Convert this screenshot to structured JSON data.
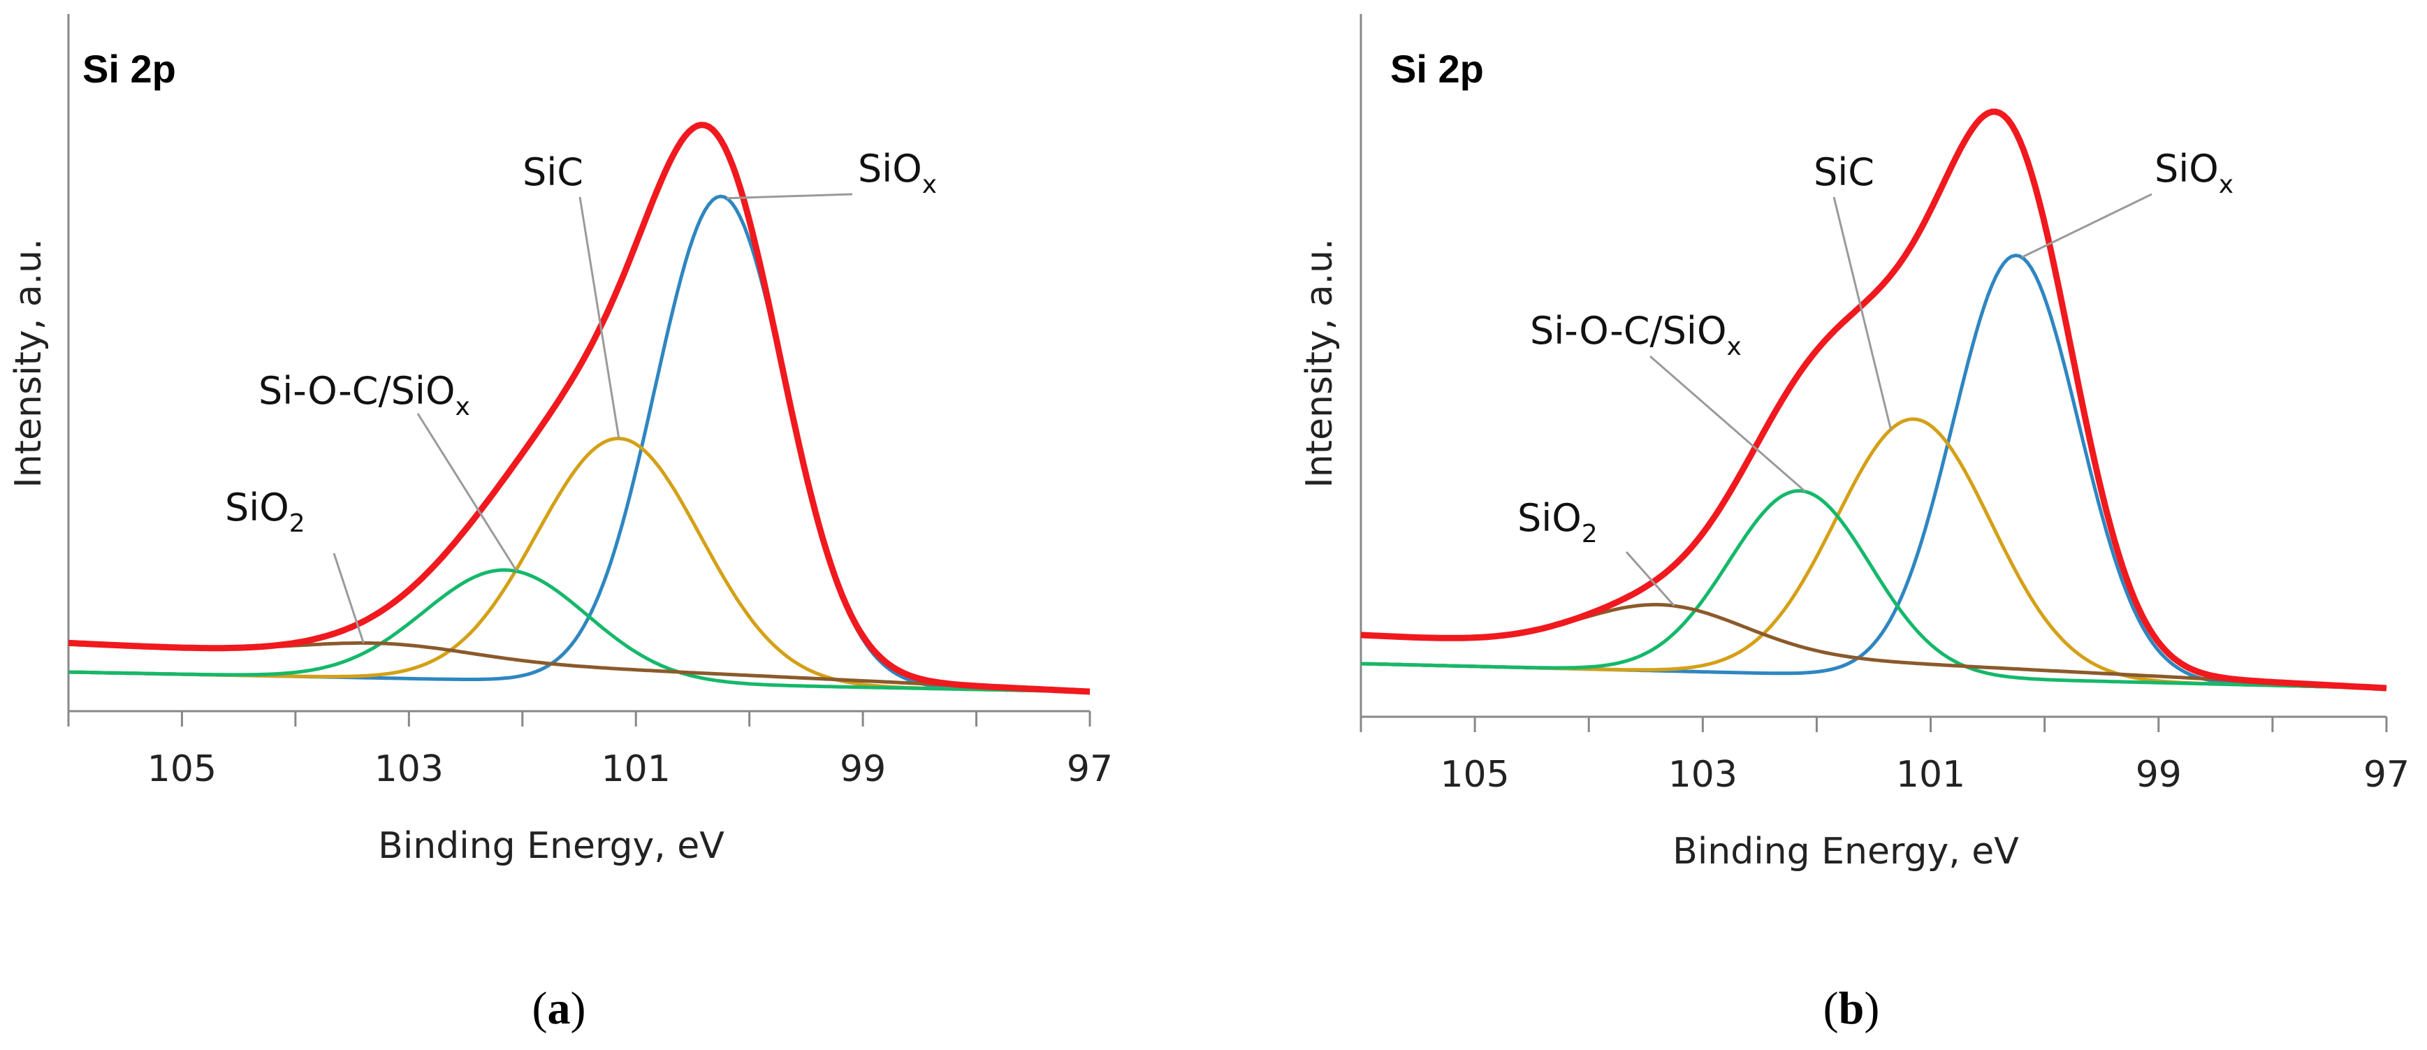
{
  "chart_data": [
    {
      "type": "line",
      "panel": "a",
      "caption": {
        "open": "(",
        "letter": "a",
        "close": ")"
      },
      "title": "Si 2p",
      "xlabel": "Binding Energy, eV",
      "ylabel": "Intensity, a.u.",
      "xlim": [
        106,
        97
      ],
      "ylim": [
        0,
        1
      ],
      "x_reversed": true,
      "xticks": [
        105,
        103,
        101,
        99,
        97
      ],
      "grid": false,
      "colors": {
        "envelope": "#f0191e",
        "SiOx": "#2e86c1",
        "SiC": "#d4a017",
        "SiOC": "#15b86a",
        "SiO2": "#8b5a2b",
        "leader": "#9a9a9a"
      },
      "series": [
        {
          "name": "Envelope",
          "key": "envelope",
          "values_desc": "measured envelope",
          "center": 100.5,
          "peak": 0.96
        },
        {
          "name": "SiOx",
          "key": "SiOx",
          "center": 100.25,
          "amplitude": 0.84,
          "sigma": 0.58
        },
        {
          "name": "SiC",
          "key": "SiC",
          "center": 101.15,
          "amplitude": 0.42,
          "sigma": 0.72
        },
        {
          "name": "Si-O-C/SiOx",
          "key": "SiOC",
          "center": 102.15,
          "amplitude": 0.19,
          "sigma": 0.72
        },
        {
          "name": "SiO2",
          "key": "SiO2",
          "center": 103.2,
          "amplitude": 0.025,
          "sigma": 0.75
        }
      ],
      "background": {
        "left_level": 0.05,
        "right_level": 0.0
      },
      "annotations": [
        {
          "key": "SiO2",
          "label": "SiO",
          "sub": "2",
          "target_x": 103.4
        },
        {
          "key": "SiOC",
          "label": "Si-O-C/SiO",
          "sub": "x",
          "target_x": 102.05
        },
        {
          "key": "SiC",
          "label": "SiC",
          "sub": "",
          "target_x": 101.15
        },
        {
          "key": "SiOx",
          "label": "SiO",
          "sub": "x",
          "target_x": 100.2
        }
      ]
    },
    {
      "type": "line",
      "panel": "b",
      "caption": {
        "open": "(",
        "letter": "b",
        "close": ")"
      },
      "title": "Si 2p",
      "xlabel": "Binding Energy, eV",
      "ylabel": "Intensity, a.u.",
      "xlim": [
        106,
        97
      ],
      "ylim": [
        0,
        1
      ],
      "x_reversed": true,
      "xticks": [
        105,
        103,
        101,
        99,
        97
      ],
      "grid": false,
      "colors": {
        "envelope": "#f0191e",
        "SiOx": "#2e86c1",
        "SiC": "#d4a017",
        "SiOC": "#15b86a",
        "SiO2": "#8b5a2b",
        "leader": "#9a9a9a"
      },
      "series": [
        {
          "name": "Envelope",
          "key": "envelope",
          "values_desc": "measured envelope",
          "center": 100.5,
          "peak": 0.99
        },
        {
          "name": "SiOx",
          "key": "SiOx",
          "center": 100.25,
          "amplitude": 0.74,
          "sigma": 0.55
        },
        {
          "name": "SiC",
          "key": "SiC",
          "center": 101.15,
          "amplitude": 0.45,
          "sigma": 0.68
        },
        {
          "name": "Si-O-C/SiOx",
          "key": "SiOC",
          "center": 102.15,
          "amplitude": 0.32,
          "sigma": 0.62
        },
        {
          "name": "SiO2",
          "key": "SiO2",
          "center": 103.35,
          "amplitude": 0.08,
          "sigma": 0.72
        }
      ],
      "background": {
        "left_level": 0.05,
        "right_level": 0.0
      },
      "annotations": [
        {
          "key": "SiO2",
          "label": "SiO",
          "sub": "2",
          "target_x": 103.25
        },
        {
          "key": "SiOC",
          "label": "Si-O-C/SiO",
          "sub": "x",
          "target_x": 102.1
        },
        {
          "key": "SiC",
          "label": "SiC",
          "sub": "",
          "target_x": 101.35
        },
        {
          "key": "SiOx",
          "label": "SiO",
          "sub": "x",
          "target_x": 100.2
        }
      ]
    }
  ]
}
